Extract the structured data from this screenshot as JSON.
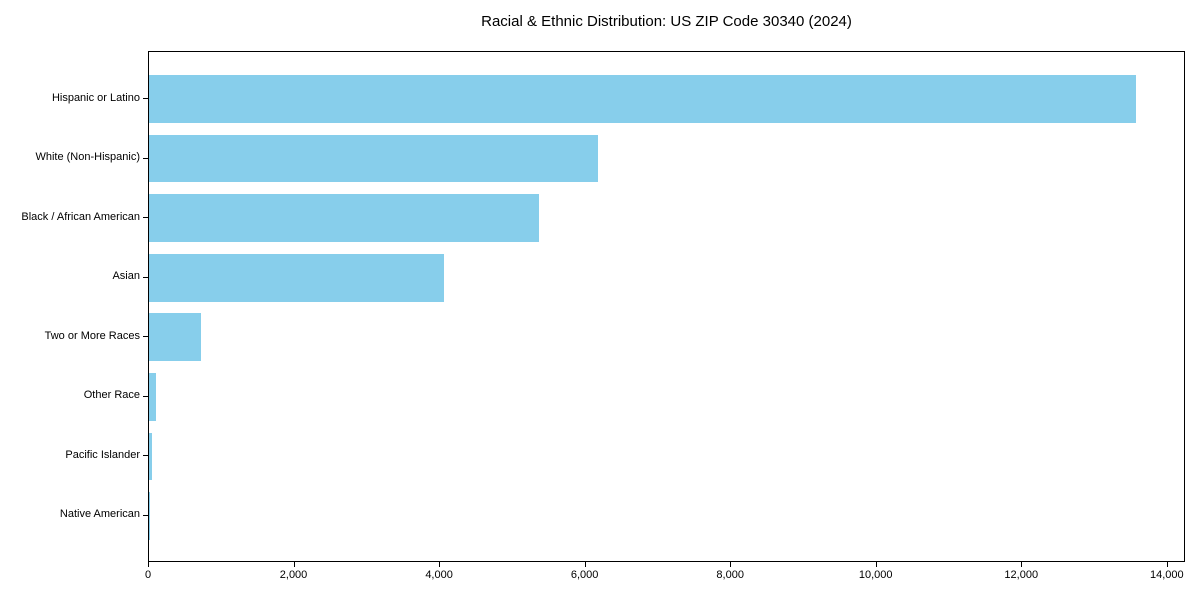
{
  "figure": {
    "title": "Racial & Ethnic Distribution: US ZIP Code 30340 (2024)"
  },
  "chart_data": {
    "type": "bar",
    "orientation": "horizontal",
    "title": "Racial & Ethnic Distribution: US ZIP Code 30340 (2024)",
    "xlabel": "",
    "ylabel": "",
    "categories": [
      "Hispanic or Latino",
      "White (Non-Hispanic)",
      "Black / African American",
      "Asian",
      "Two or More Races",
      "Other Race",
      "Pacific Islander",
      "Native American"
    ],
    "values": [
      13560,
      6170,
      5360,
      4050,
      720,
      100,
      40,
      10
    ],
    "xlim": [
      0,
      14250
    ],
    "x_ticks": [
      0,
      2000,
      4000,
      6000,
      8000,
      10000,
      12000,
      14000
    ],
    "x_tick_labels": [
      "0",
      "2,000",
      "4,000",
      "6,000",
      "8,000",
      "10,000",
      "12,000",
      "14,000"
    ],
    "bar_color": "#87CEEB",
    "text_color": "#000000",
    "spine_color": "#000000",
    "grid": false,
    "legend": null
  }
}
